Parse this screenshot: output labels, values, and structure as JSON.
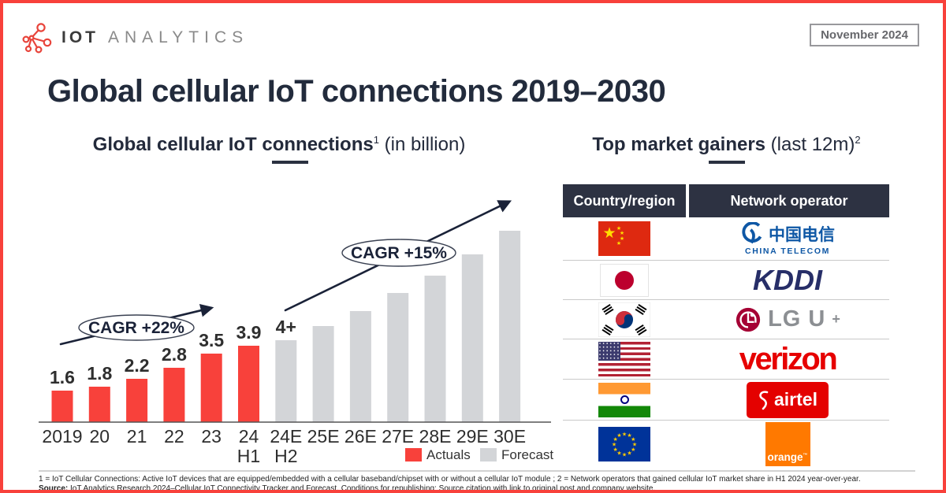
{
  "header": {
    "brand_bold": "IOT",
    "brand_light": "ANALYTICS",
    "date_badge": "November 2024"
  },
  "title": "Global cellular IoT connections 2019–2030",
  "left_panel": {
    "subtitle_bold": "Global cellular IoT connections",
    "subtitle_sup": "1",
    "subtitle_rest": " (in billion)"
  },
  "right_panel": {
    "subtitle_bold": "Top market gainers",
    "subtitle_rest": " (last 12m)",
    "subtitle_sup": "2"
  },
  "chart_data": {
    "type": "bar",
    "title": "Global cellular IoT connections (in billion)",
    "categories": [
      "2019",
      "20",
      "21",
      "22",
      "23",
      "24",
      "24E",
      "25E",
      "26E",
      "27E",
      "28E",
      "29E",
      "30E"
    ],
    "sub_labels": [
      "",
      "",
      "",
      "",
      "",
      "H1",
      "H2",
      "",
      "",
      "",
      "",
      "",
      ""
    ],
    "series": [
      {
        "name": "Actuals",
        "color": "#F8413B",
        "values": [
          1.6,
          1.8,
          2.2,
          2.8,
          3.5,
          3.9,
          null,
          null,
          null,
          null,
          null,
          null,
          null
        ]
      },
      {
        "name": "Forecast",
        "color": "#D3D5D8",
        "values": [
          null,
          null,
          null,
          null,
          null,
          null,
          4.2,
          4.9,
          5.7,
          6.6,
          7.5,
          8.6,
          9.8
        ]
      }
    ],
    "bar_value_labels": [
      "1.6",
      "1.8",
      "2.2",
      "2.8",
      "3.5",
      "3.9",
      "4+",
      "",
      "",
      "",
      "",
      "",
      ""
    ],
    "annotations": [
      {
        "text": "CAGR +22%",
        "span": "2019–24 H1 actuals"
      },
      {
        "text": "CAGR +15%",
        "span": "24E–30E forecast"
      }
    ],
    "xlabel": "",
    "ylabel": "connections (billion)",
    "ylim": [
      0,
      10.5
    ],
    "grid": false,
    "legend_position": "bottom-right"
  },
  "table": {
    "headers": [
      "Country/region",
      "Network operator"
    ],
    "rows": [
      {
        "country": "China",
        "operator": "China Telecom"
      },
      {
        "country": "Japan",
        "operator": "KDDI"
      },
      {
        "country": "South Korea",
        "operator": "LG U+"
      },
      {
        "country": "United States",
        "operator": "Verizon"
      },
      {
        "country": "India",
        "operator": "Airtel"
      },
      {
        "country": "European Union",
        "operator": "Orange"
      }
    ],
    "logos": {
      "china_telecom_cjk": "中国电信",
      "china_telecom_sub": "CHINA TELECOM",
      "kddi": "KDDI",
      "lgu_text": "LG U",
      "lgu_plus": "+",
      "verizon": "verizon",
      "airtel": "airtel",
      "orange": "orange",
      "orange_tm": "™"
    }
  },
  "footer": {
    "note1": "1 = IoT Cellular Connections: Active IoT devices that are equipped/embedded with a cellular baseband/chipset with or without a cellular IoT module ; 2 = Network operators that gained cellular IoT market share in H1 2024 year-over-year.",
    "source_label": "Source:",
    "source_rest": " IoT Analytics Research 2024–Cellular IoT Connectivity Tracker and Forecast. Conditions for republishing: Source citation with link to original post and company website."
  },
  "colors": {
    "accent_red": "#F8413B",
    "forecast_gray": "#D3D5D8",
    "dark_navy": "#232A3B",
    "table_header_bg": "#2D3242"
  }
}
